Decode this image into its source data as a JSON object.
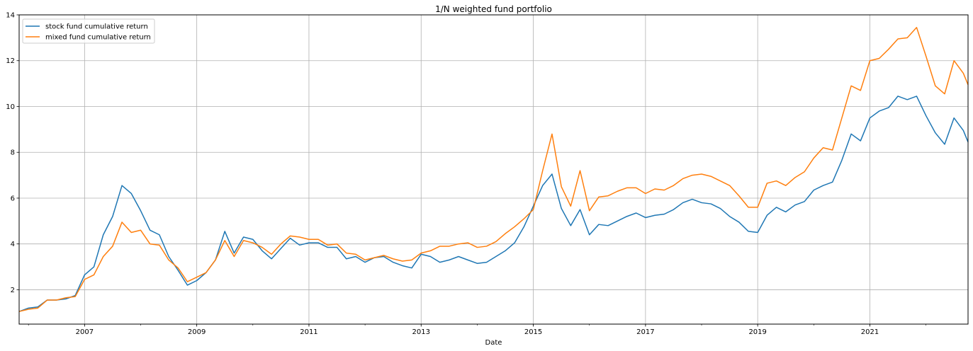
{
  "chart_data": {
    "type": "line",
    "title": "1/N weighted fund portfolio",
    "xlabel": "Date",
    "ylabel": "",
    "xlim": [
      "2005-11",
      "2022-10"
    ],
    "ylim": [
      0.5,
      14
    ],
    "yticks": [
      2,
      4,
      6,
      8,
      10,
      12,
      14
    ],
    "xticks": [
      "2007",
      "2009",
      "2011",
      "2013",
      "2015",
      "2017",
      "2019",
      "2021"
    ],
    "grid": true,
    "legend_placement": "top-left",
    "x": [
      "2005-11",
      "2006-01",
      "2006-03",
      "2006-05",
      "2006-07",
      "2006-09",
      "2006-11",
      "2007-01",
      "2007-03",
      "2007-05",
      "2007-07",
      "2007-09",
      "2007-11",
      "2008-01",
      "2008-03",
      "2008-05",
      "2008-07",
      "2008-09",
      "2008-11",
      "2009-01",
      "2009-03",
      "2009-05",
      "2009-07",
      "2009-09",
      "2009-11",
      "2010-01",
      "2010-03",
      "2010-05",
      "2010-07",
      "2010-09",
      "2010-11",
      "2011-01",
      "2011-03",
      "2011-05",
      "2011-07",
      "2011-09",
      "2011-11",
      "2012-01",
      "2012-03",
      "2012-05",
      "2012-07",
      "2012-09",
      "2012-11",
      "2013-01",
      "2013-03",
      "2013-05",
      "2013-07",
      "2013-09",
      "2013-11",
      "2014-01",
      "2014-03",
      "2014-05",
      "2014-07",
      "2014-09",
      "2014-11",
      "2015-01",
      "2015-03",
      "2015-05",
      "2015-07",
      "2015-09",
      "2015-11",
      "2016-01",
      "2016-03",
      "2016-05",
      "2016-07",
      "2016-09",
      "2016-11",
      "2017-01",
      "2017-03",
      "2017-05",
      "2017-07",
      "2017-09",
      "2017-11",
      "2018-01",
      "2018-03",
      "2018-05",
      "2018-07",
      "2018-09",
      "2018-11",
      "2019-01",
      "2019-03",
      "2019-05",
      "2019-07",
      "2019-09",
      "2019-11",
      "2020-01",
      "2020-03",
      "2020-05",
      "2020-07",
      "2020-09",
      "2020-11",
      "2021-01",
      "2021-03",
      "2021-05",
      "2021-07",
      "2021-09",
      "2021-11",
      "2022-01",
      "2022-03",
      "2022-05",
      "2022-07",
      "2022-09",
      "2022-10"
    ],
    "series": [
      {
        "name": "stock fund cumulative return",
        "color": "#1f77b4",
        "values": [
          1.05,
          1.2,
          1.25,
          1.55,
          1.55,
          1.6,
          1.75,
          2.65,
          3.0,
          4.4,
          5.2,
          6.55,
          6.2,
          5.45,
          4.6,
          4.4,
          3.45,
          2.85,
          2.2,
          2.4,
          2.75,
          3.3,
          4.55,
          3.6,
          4.3,
          4.2,
          3.7,
          3.35,
          3.8,
          4.25,
          3.95,
          4.05,
          4.05,
          3.85,
          3.85,
          3.35,
          3.45,
          3.2,
          3.4,
          3.45,
          3.2,
          3.05,
          2.95,
          3.55,
          3.45,
          3.2,
          3.3,
          3.45,
          3.3,
          3.15,
          3.2,
          3.45,
          3.7,
          4.05,
          4.75,
          5.65,
          6.55,
          7.05,
          5.55,
          4.8,
          5.5,
          4.4,
          4.85,
          4.8,
          5.0,
          5.2,
          5.35,
          5.15,
          5.25,
          5.3,
          5.5,
          5.8,
          5.95,
          5.8,
          5.75,
          5.55,
          5.2,
          4.95,
          4.55,
          4.5,
          5.25,
          5.6,
          5.4,
          5.7,
          5.85,
          6.35,
          6.55,
          6.7,
          7.65,
          8.8,
          8.5,
          9.5,
          9.8,
          9.95,
          10.45,
          10.3,
          10.45,
          9.6,
          8.85,
          8.35,
          9.5,
          8.95,
          8.45
        ]
      },
      {
        "name": "mixed fund cumulative return",
        "color": "#ff7f0e",
        "values": [
          1.05,
          1.15,
          1.2,
          1.55,
          1.55,
          1.65,
          1.7,
          2.45,
          2.65,
          3.45,
          3.9,
          4.95,
          4.5,
          4.6,
          4.0,
          3.95,
          3.3,
          2.95,
          2.35,
          2.55,
          2.75,
          3.3,
          4.15,
          3.45,
          4.15,
          4.05,
          3.85,
          3.55,
          4.0,
          4.35,
          4.3,
          4.2,
          4.2,
          3.95,
          4.0,
          3.6,
          3.55,
          3.3,
          3.4,
          3.5,
          3.35,
          3.25,
          3.3,
          3.6,
          3.7,
          3.9,
          3.9,
          4.0,
          4.05,
          3.85,
          3.9,
          4.1,
          4.45,
          4.75,
          5.1,
          5.5,
          7.2,
          8.8,
          6.5,
          5.65,
          7.2,
          5.45,
          6.05,
          6.1,
          6.3,
          6.45,
          6.45,
          6.2,
          6.4,
          6.35,
          6.55,
          6.85,
          7.0,
          7.05,
          6.95,
          6.75,
          6.55,
          6.1,
          5.6,
          5.6,
          6.65,
          6.75,
          6.55,
          6.9,
          7.15,
          7.75,
          8.2,
          8.1,
          9.5,
          10.9,
          10.7,
          12.0,
          12.1,
          12.5,
          12.95,
          13.0,
          13.45,
          12.2,
          10.9,
          10.55,
          12.0,
          11.45,
          10.95
        ]
      }
    ]
  }
}
